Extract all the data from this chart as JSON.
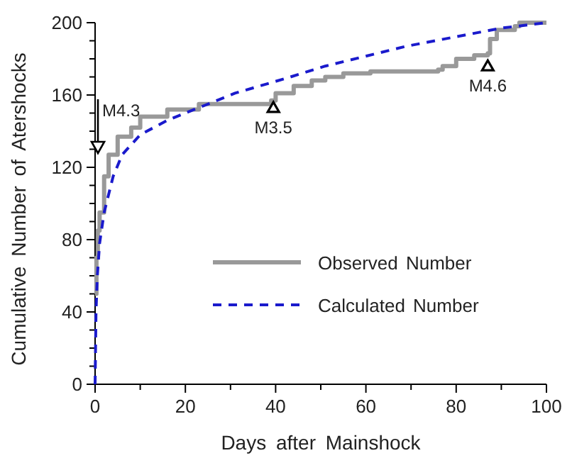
{
  "chart_data": {
    "type": "line",
    "xlabel": "Days after Mainshock",
    "ylabel": "Cumulative Number of Atershocks",
    "xlim": [
      0,
      100
    ],
    "ylim": [
      0,
      200
    ],
    "xticks": [
      0,
      20,
      40,
      60,
      80,
      100
    ],
    "yticks": [
      0,
      40,
      80,
      120,
      160,
      200
    ],
    "grid": false,
    "legend": "right",
    "marker": "none",
    "series": [
      {
        "name": "Observed Number",
        "type": "step",
        "color": "#999999",
        "line_style": "solid",
        "x": [
          0,
          0.3,
          0.6,
          1,
          2,
          3,
          5,
          8,
          10,
          16,
          23,
          39,
          40,
          44,
          48,
          51,
          55,
          61,
          76,
          77,
          80,
          84,
          87,
          87.5,
          89,
          93,
          94,
          100
        ],
        "values": [
          50,
          70,
          85,
          95,
          115,
          127,
          137,
          142,
          148,
          152,
          155,
          157,
          161,
          165,
          168,
          170,
          172,
          173,
          174,
          176,
          180,
          182,
          183,
          191,
          196,
          198,
          200,
          200
        ]
      },
      {
        "name": "Calculated Number",
        "type": "line",
        "color": "#1a1acc",
        "line_style": "dashed",
        "x": [
          0,
          0.2,
          0.5,
          1,
          2,
          4,
          6,
          10,
          16,
          23,
          31,
          42,
          51,
          69,
          90,
          100
        ],
        "values": [
          0,
          40,
          60,
          78,
          95,
          115,
          127,
          138,
          146,
          153,
          161,
          169,
          176,
          187,
          197,
          200
        ]
      }
    ],
    "annotations": [
      "M4.3",
      {
        "text": "M3.5",
        "x": 39.5,
        "y": 153
      },
      {
        "text": "M4.6",
        "x": 87,
        "y": 176
      }
    ]
  }
}
